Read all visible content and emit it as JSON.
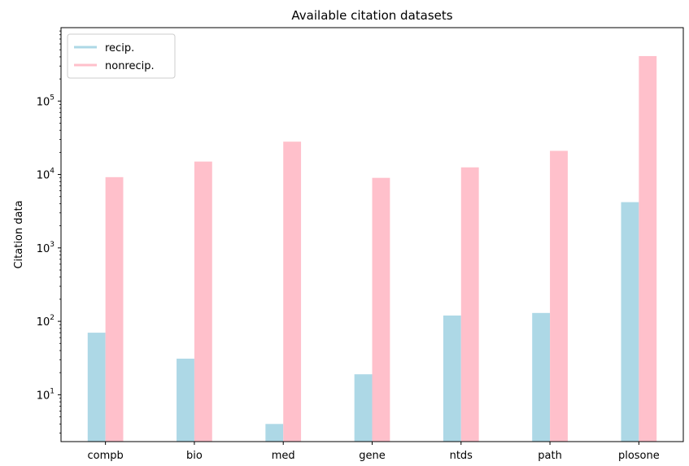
{
  "chart_data": {
    "type": "bar",
    "title": "Available citation datasets",
    "xlabel": "",
    "ylabel": "Citation data",
    "yscale": "log",
    "ylim": [
      2.3,
      1000000
    ],
    "yticks": [
      10,
      100,
      1000,
      10000,
      100000
    ],
    "ytick_labels": [
      {
        "base": "10",
        "exp": "1"
      },
      {
        "base": "10",
        "exp": "2"
      },
      {
        "base": "10",
        "exp": "3"
      },
      {
        "base": "10",
        "exp": "4"
      },
      {
        "base": "10",
        "exp": "5"
      }
    ],
    "categories": [
      "compb",
      "bio",
      "med",
      "gene",
      "ntds",
      "path",
      "plosone"
    ],
    "series": [
      {
        "name": "recip.",
        "color": "#add8e6",
        "values": [
          70,
          31,
          4,
          19,
          120,
          130,
          4200
        ]
      },
      {
        "name": "nonrecip.",
        "color": "#ffc0cb",
        "values": [
          9200,
          15000,
          28000,
          9000,
          12500,
          21000,
          410000
        ]
      }
    ],
    "legend_position": "top-left",
    "grid": false
  }
}
